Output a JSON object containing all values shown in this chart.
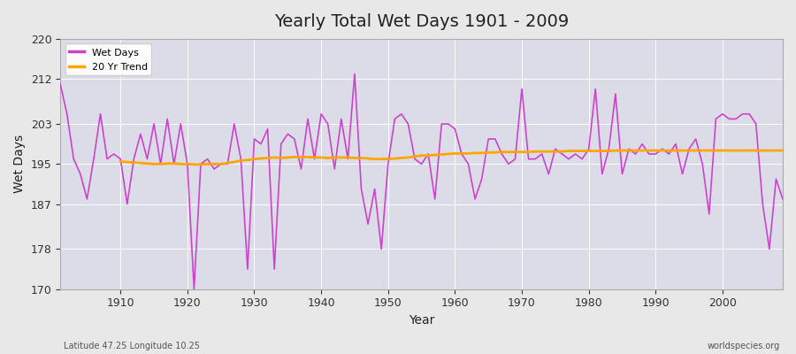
{
  "title": "Yearly Total Wet Days 1901 - 2009",
  "xlabel": "Year",
  "ylabel": "Wet Days",
  "footnote_left": "Latitude 47.25 Longitude 10.25",
  "footnote_right": "worldspecies.org",
  "legend_wet": "Wet Days",
  "legend_trend": "20 Yr Trend",
  "wet_color": "#cc44cc",
  "trend_color": "#ffa500",
  "ylim": [
    170,
    220
  ],
  "yticks": [
    170,
    178,
    187,
    195,
    203,
    212,
    220
  ],
  "xlim": [
    1901,
    2009
  ],
  "xticks": [
    1910,
    1920,
    1930,
    1940,
    1950,
    1960,
    1970,
    1980,
    1990,
    2000
  ],
  "years": [
    1901,
    1902,
    1903,
    1904,
    1905,
    1906,
    1907,
    1908,
    1909,
    1910,
    1911,
    1912,
    1913,
    1914,
    1915,
    1916,
    1917,
    1918,
    1919,
    1920,
    1921,
    1922,
    1923,
    1924,
    1925,
    1926,
    1927,
    1928,
    1929,
    1930,
    1931,
    1932,
    1933,
    1934,
    1935,
    1936,
    1937,
    1938,
    1939,
    1940,
    1941,
    1942,
    1943,
    1944,
    1945,
    1946,
    1947,
    1948,
    1949,
    1950,
    1951,
    1952,
    1953,
    1954,
    1955,
    1956,
    1957,
    1958,
    1959,
    1960,
    1961,
    1962,
    1963,
    1964,
    1965,
    1966,
    1967,
    1968,
    1969,
    1970,
    1971,
    1972,
    1973,
    1974,
    1975,
    1976,
    1977,
    1978,
    1979,
    1980,
    1981,
    1982,
    1983,
    1984,
    1985,
    1986,
    1987,
    1988,
    1989,
    1990,
    1991,
    1992,
    1993,
    1994,
    1995,
    1996,
    1997,
    1998,
    1999,
    2000,
    2001,
    2002,
    2003,
    2004,
    2005,
    2006,
    2007,
    2008,
    2009
  ],
  "wet_days": [
    211,
    205,
    196,
    193,
    188,
    196,
    205,
    196,
    197,
    196,
    187,
    196,
    201,
    196,
    203,
    195,
    204,
    195,
    203,
    195,
    170,
    195,
    196,
    194,
    195,
    195,
    203,
    196,
    174,
    200,
    199,
    202,
    174,
    199,
    201,
    200,
    194,
    204,
    196,
    205,
    203,
    194,
    204,
    196,
    213,
    190,
    183,
    190,
    178,
    195,
    204,
    205,
    203,
    196,
    195,
    197,
    188,
    203,
    203,
    202,
    197,
    195,
    188,
    192,
    200,
    200,
    197,
    195,
    196,
    210,
    196,
    196,
    197,
    193,
    198,
    197,
    196,
    197,
    196,
    198,
    210,
    193,
    198,
    209,
    193,
    198,
    197,
    199,
    197,
    197,
    198,
    197,
    199,
    193,
    198,
    200,
    195,
    185,
    204,
    205,
    204,
    204,
    205,
    205,
    203,
    187,
    178,
    192,
    188
  ],
  "trend_years": [
    1910,
    1911,
    1912,
    1913,
    1914,
    1915,
    1916,
    1917,
    1918,
    1919,
    1920,
    1921,
    1922,
    1923,
    1924,
    1925,
    1926,
    1927,
    1928,
    1929,
    1930,
    1931,
    1932,
    1933,
    1934,
    1935,
    1936,
    1937,
    1938,
    1939,
    1940,
    1941,
    1942,
    1943,
    1944,
    1945,
    1946,
    1947,
    1948,
    1949,
    1950,
    1951,
    1952,
    1953,
    1954,
    1955,
    1956,
    1957,
    1958,
    1959,
    1960,
    1961,
    1962,
    1963,
    1964,
    1965,
    1966,
    1967,
    1968,
    1969,
    1970,
    1971,
    1972,
    1973,
    1974,
    1975,
    1976,
    1977,
    1978,
    1979,
    1980,
    1981,
    1982,
    1983,
    1984,
    1985,
    1986,
    1987,
    1988,
    1989,
    1990,
    1991,
    1992,
    1993,
    1994,
    1995,
    1996,
    1997,
    1998,
    1999,
    2000,
    2001,
    2002,
    2003,
    2004,
    2005,
    2006,
    2007,
    2008,
    2009
  ],
  "trend_vals": [
    195.5,
    195.4,
    195.3,
    195.2,
    195.1,
    195.0,
    195.0,
    195.1,
    195.1,
    195.0,
    195.0,
    194.9,
    194.9,
    195.0,
    195.0,
    195.0,
    195.2,
    195.4,
    195.7,
    195.8,
    196.0,
    196.1,
    196.2,
    196.3,
    196.2,
    196.3,
    196.4,
    196.4,
    196.4,
    196.3,
    196.3,
    196.2,
    196.3,
    196.3,
    196.3,
    196.2,
    196.2,
    196.1,
    196.0,
    196.0,
    196.0,
    196.1,
    196.2,
    196.3,
    196.5,
    196.7,
    196.7,
    196.8,
    196.9,
    197.0,
    197.1,
    197.1,
    197.1,
    197.2,
    197.2,
    197.3,
    197.3,
    197.4,
    197.4,
    197.4,
    197.4,
    197.4,
    197.5,
    197.5,
    197.5,
    197.5,
    197.5,
    197.6,
    197.6,
    197.6,
    197.6,
    197.6,
    197.6,
    197.6,
    197.7,
    197.7,
    197.7,
    197.7,
    197.7,
    197.7,
    197.7,
    197.7,
    197.7,
    197.7,
    197.7,
    197.7,
    197.7,
    197.7,
    197.7,
    197.7,
    197.7,
    197.7,
    197.7,
    197.7,
    197.7,
    197.7,
    197.7,
    197.7,
    197.7,
    197.7
  ]
}
